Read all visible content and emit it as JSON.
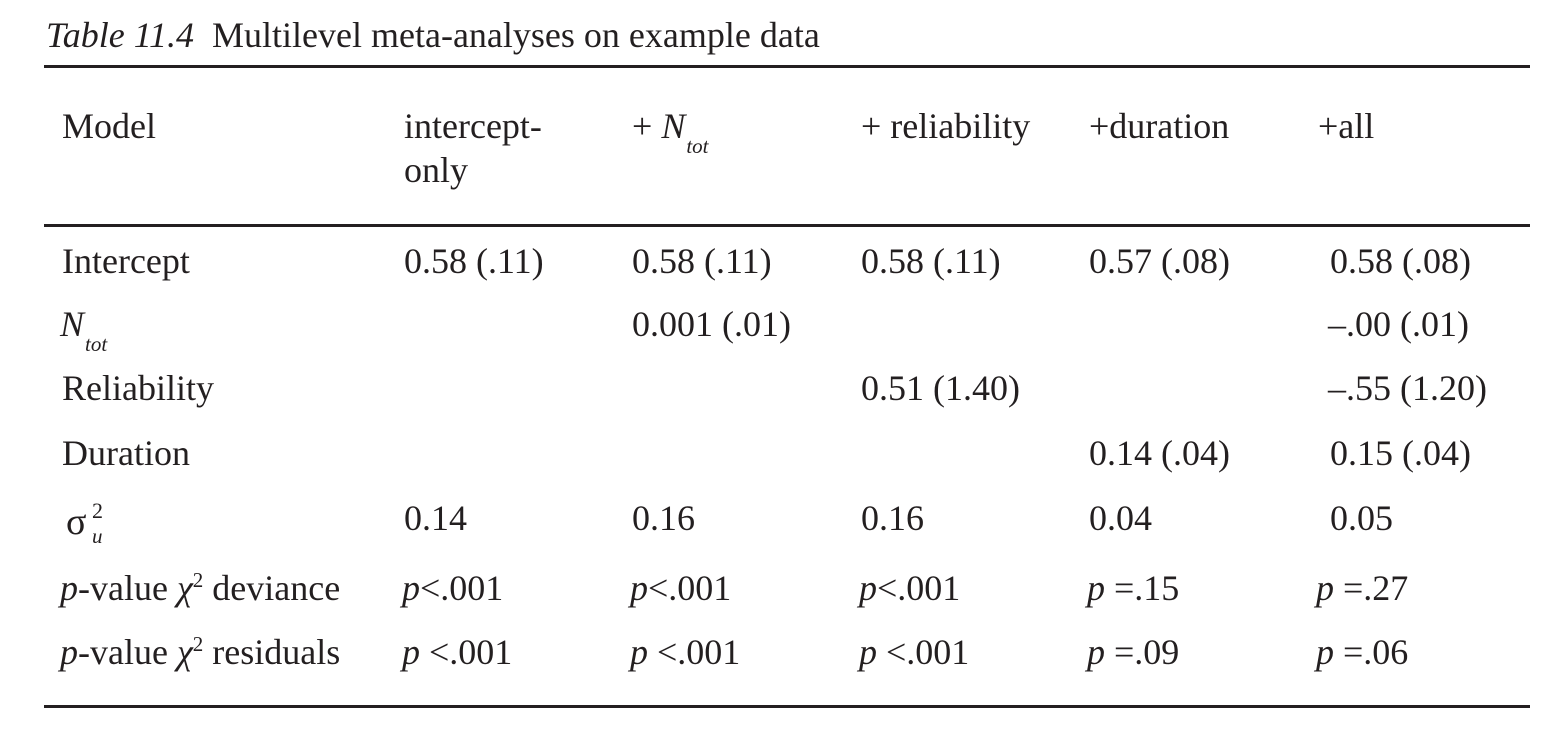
{
  "caption": {
    "label": "Table 11.4",
    "title": "Multilevel meta-analyses on example data"
  },
  "header": {
    "model": "Model",
    "intercept_only_line1": "intercept-",
    "intercept_only_line2": "only",
    "ntot_prefix": "+ ",
    "ntot_var": "N",
    "ntot_sub": "tot",
    "reliability": "+ reliability",
    "duration": "+duration",
    "all": "+all"
  },
  "rows": {
    "intercept": {
      "label": "Intercept",
      "values": [
        "0.58 (.11)",
        "0.58 (.11)",
        "0.58 (.11)",
        "0.57 (.08)",
        "0.58 (.08)"
      ]
    },
    "ntot": {
      "label_var": "N",
      "label_sub": "tot",
      "values": [
        "",
        "0.001 (.01)",
        "",
        "",
        "–.00 (.01)"
      ]
    },
    "reliability": {
      "label": "Reliability",
      "values": [
        "",
        "",
        "0.51 (1.40)",
        "",
        "–.55 (1.20)"
      ]
    },
    "duration": {
      "label": "Duration",
      "values": [
        "",
        "",
        "",
        "0.14 (.04)",
        "0.15 (.04)"
      ]
    },
    "sigma": {
      "symbol": "σ",
      "sup": "2",
      "sub": "u",
      "values": [
        "0.14",
        "0.16",
        "0.16",
        "0.04",
        "0.05"
      ]
    },
    "deviance": {
      "label_p": "p",
      "label_rest": "-value ",
      "label_chi": "χ",
      "label_sup": "2",
      "label_end": " deviance",
      "values": [
        {
          "p": "p",
          "rest": "<.001"
        },
        {
          "p": "p",
          "rest": "<.001"
        },
        {
          "p": "p",
          "rest": "<.001"
        },
        {
          "p": "p",
          "rest": " =.15"
        },
        {
          "p": "p",
          "rest": " =.27"
        }
      ]
    },
    "residuals": {
      "label_p": "p",
      "label_rest": "-value ",
      "label_chi": "χ",
      "label_sup": "2",
      "label_end": " residuals",
      "values": [
        {
          "p": "p",
          "rest": " <.001"
        },
        {
          "p": "p",
          "rest": " <.001"
        },
        {
          "p": "p",
          "rest": " <.001"
        },
        {
          "p": "p",
          "rest": " =.09"
        },
        {
          "p": "p",
          "rest": " =.06"
        }
      ]
    }
  }
}
